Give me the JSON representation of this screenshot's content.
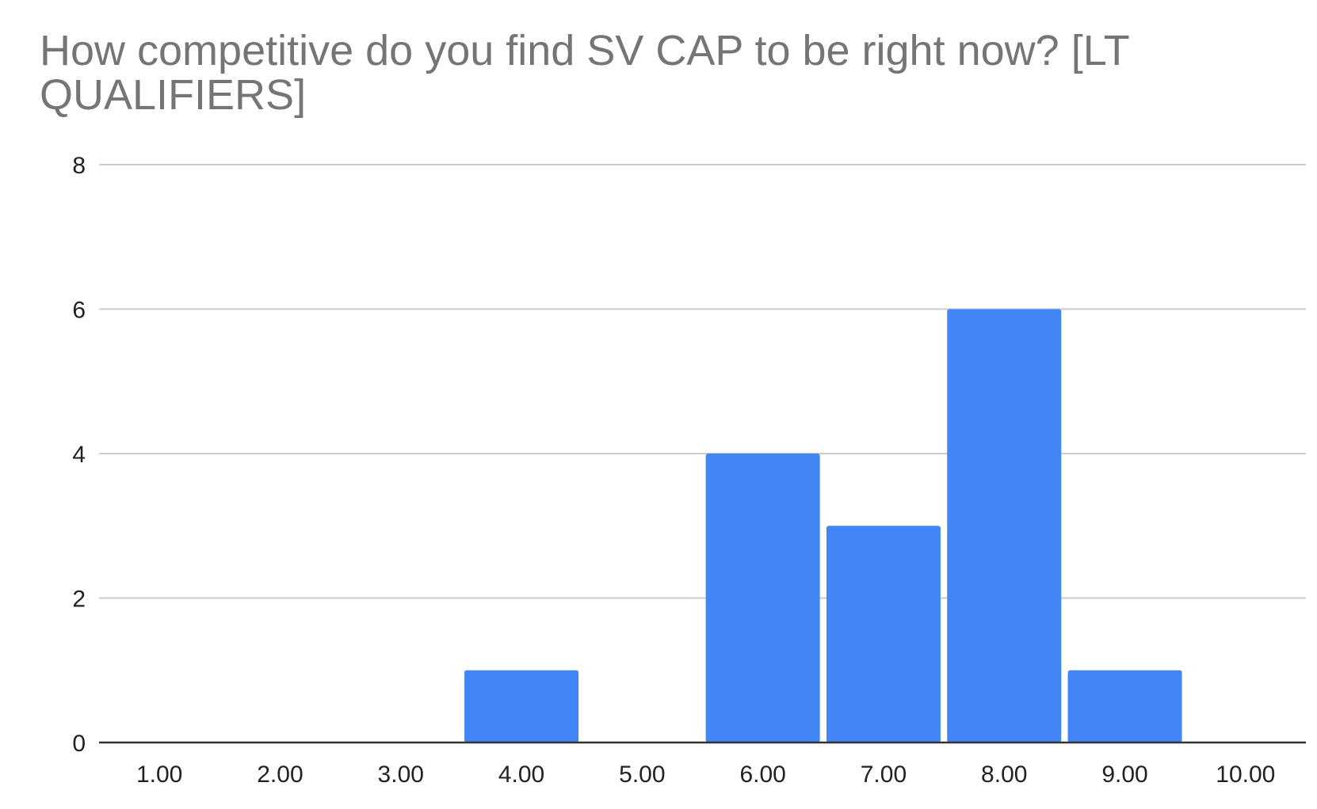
{
  "chart_data": {
    "type": "bar",
    "title": "How competitive do you find SV CAP to be right now? [LT QUALIFIERS]",
    "categories": [
      "1.00",
      "2.00",
      "3.00",
      "4.00",
      "5.00",
      "6.00",
      "7.00",
      "8.00",
      "9.00",
      "10.00"
    ],
    "values": [
      0,
      0,
      0,
      1,
      0,
      4,
      3,
      6,
      1,
      0
    ],
    "xlabel": "",
    "ylabel": "",
    "ylim": [
      0,
      8
    ],
    "yticks": [
      "0",
      "2",
      "4",
      "6",
      "8"
    ],
    "grid": true,
    "bar_color": "#4285f4",
    "grid_color": "#cccccc",
    "axis_color": "#333333",
    "title_color": "#757575"
  }
}
